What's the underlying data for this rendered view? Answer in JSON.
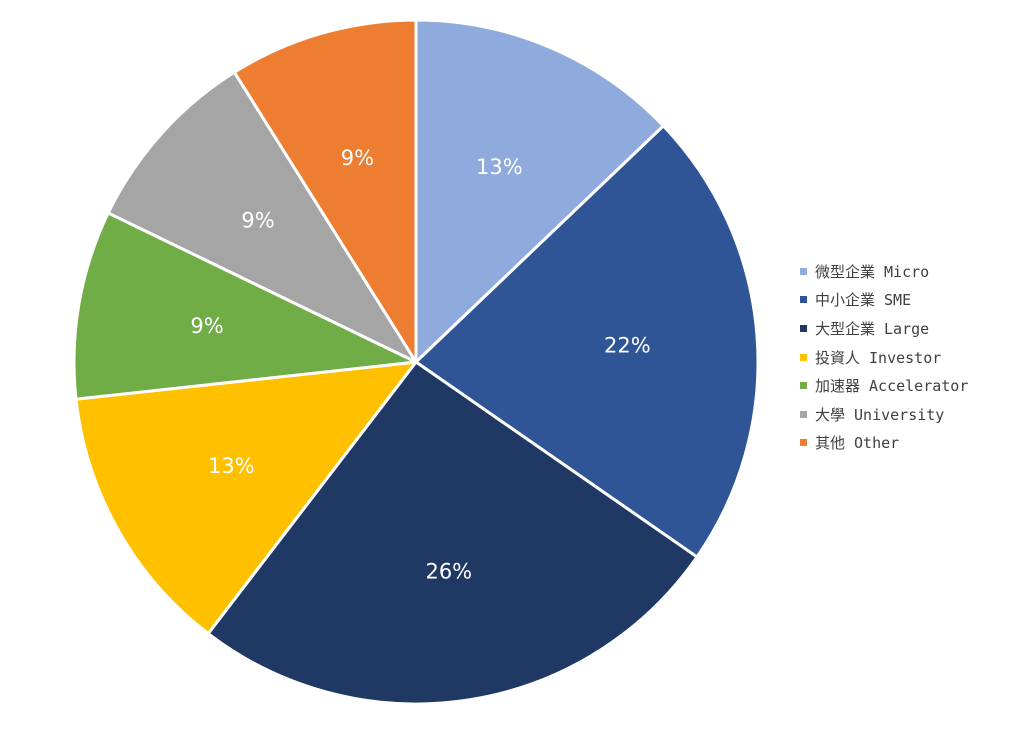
{
  "chart_data": {
    "type": "pie",
    "start_angle_deg": 0,
    "direction": "clockwise",
    "legend_position": "right",
    "slices": [
      {
        "label": "微型企業 Micro",
        "value": 13,
        "display": "13%",
        "color": "#8FAADC"
      },
      {
        "label": "中小企業 SME",
        "value": 22,
        "display": "22%",
        "color": "#2F5597"
      },
      {
        "label": "大型企業 Large",
        "value": 26,
        "display": "26%",
        "color": "#203864"
      },
      {
        "label": "投資人 Investor",
        "value": 13,
        "display": "13%",
        "color": "#FFC000"
      },
      {
        "label": "加速器 Accelerator",
        "value": 9,
        "display": "9%",
        "color": "#70AD47"
      },
      {
        "label": "大學 University",
        "value": 9,
        "display": "9%",
        "color": "#A5A5A5"
      },
      {
        "label": "其他 Other",
        "value": 9,
        "display": "9%",
        "color": "#ED7D31"
      }
    ]
  }
}
